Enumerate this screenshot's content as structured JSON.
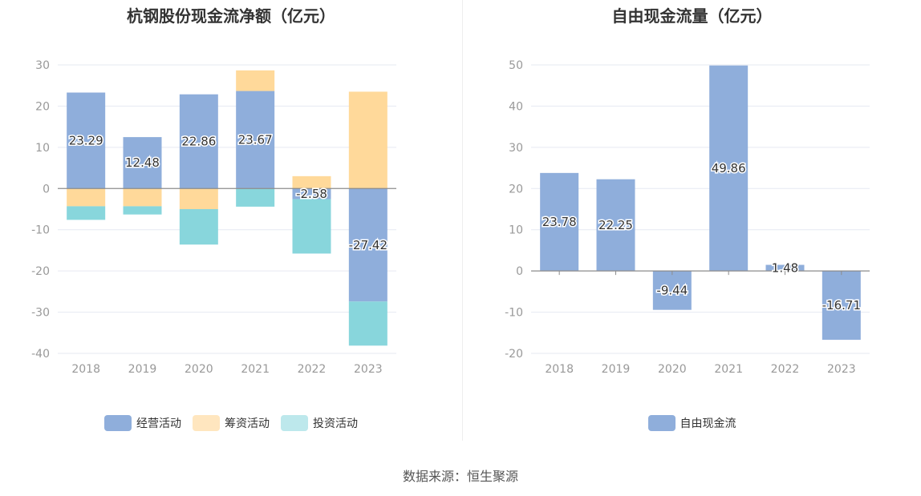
{
  "source_text": "数据来源：恒生聚源",
  "chart_data": [
    {
      "type": "bar",
      "stacked": true,
      "title": "杭钢股份现金流净额（亿元）",
      "categories": [
        "2018",
        "2019",
        "2020",
        "2021",
        "2022",
        "2023"
      ],
      "ylim": [
        -40,
        30
      ],
      "yticks": [
        30,
        20,
        10,
        0,
        -10,
        -20,
        -30,
        -40
      ],
      "series": [
        {
          "name": "经营活动",
          "color": "#8faedb",
          "values": [
            23.29,
            12.48,
            22.86,
            23.67,
            -2.58,
            -27.42
          ],
          "labels": [
            "23.29",
            "12.48",
            "22.86",
            "23.67",
            "-2.58",
            "-27.42"
          ]
        },
        {
          "name": "筹资活动",
          "color": "#ffd99a",
          "legend_color": "#ffe6bf",
          "values": [
            -4.3,
            -4.3,
            -5.0,
            5.0,
            3.0,
            23.5
          ]
        },
        {
          "name": "投资活动",
          "color": "#88d6dc",
          "legend_color": "#bde8ec",
          "values": [
            -3.3,
            -2.0,
            -8.6,
            -4.4,
            -13.2,
            -10.7
          ]
        }
      ],
      "legend": [
        "经营活动",
        "筹资活动",
        "投资活动"
      ]
    },
    {
      "type": "bar",
      "title": "自由现金流量（亿元）",
      "categories": [
        "2018",
        "2019",
        "2020",
        "2021",
        "2022",
        "2023"
      ],
      "ylim": [
        -20,
        50
      ],
      "yticks": [
        50,
        40,
        30,
        20,
        10,
        0,
        -10,
        -20
      ],
      "series": [
        {
          "name": "自由现金流",
          "color": "#8faedb",
          "values": [
            23.78,
            22.25,
            -9.44,
            49.86,
            1.48,
            -16.71
          ],
          "labels": [
            "23.78",
            "22.25",
            "-9.44",
            "49.86",
            "1.48",
            "-16.71"
          ]
        }
      ],
      "legend": [
        "自由现金流"
      ]
    }
  ]
}
